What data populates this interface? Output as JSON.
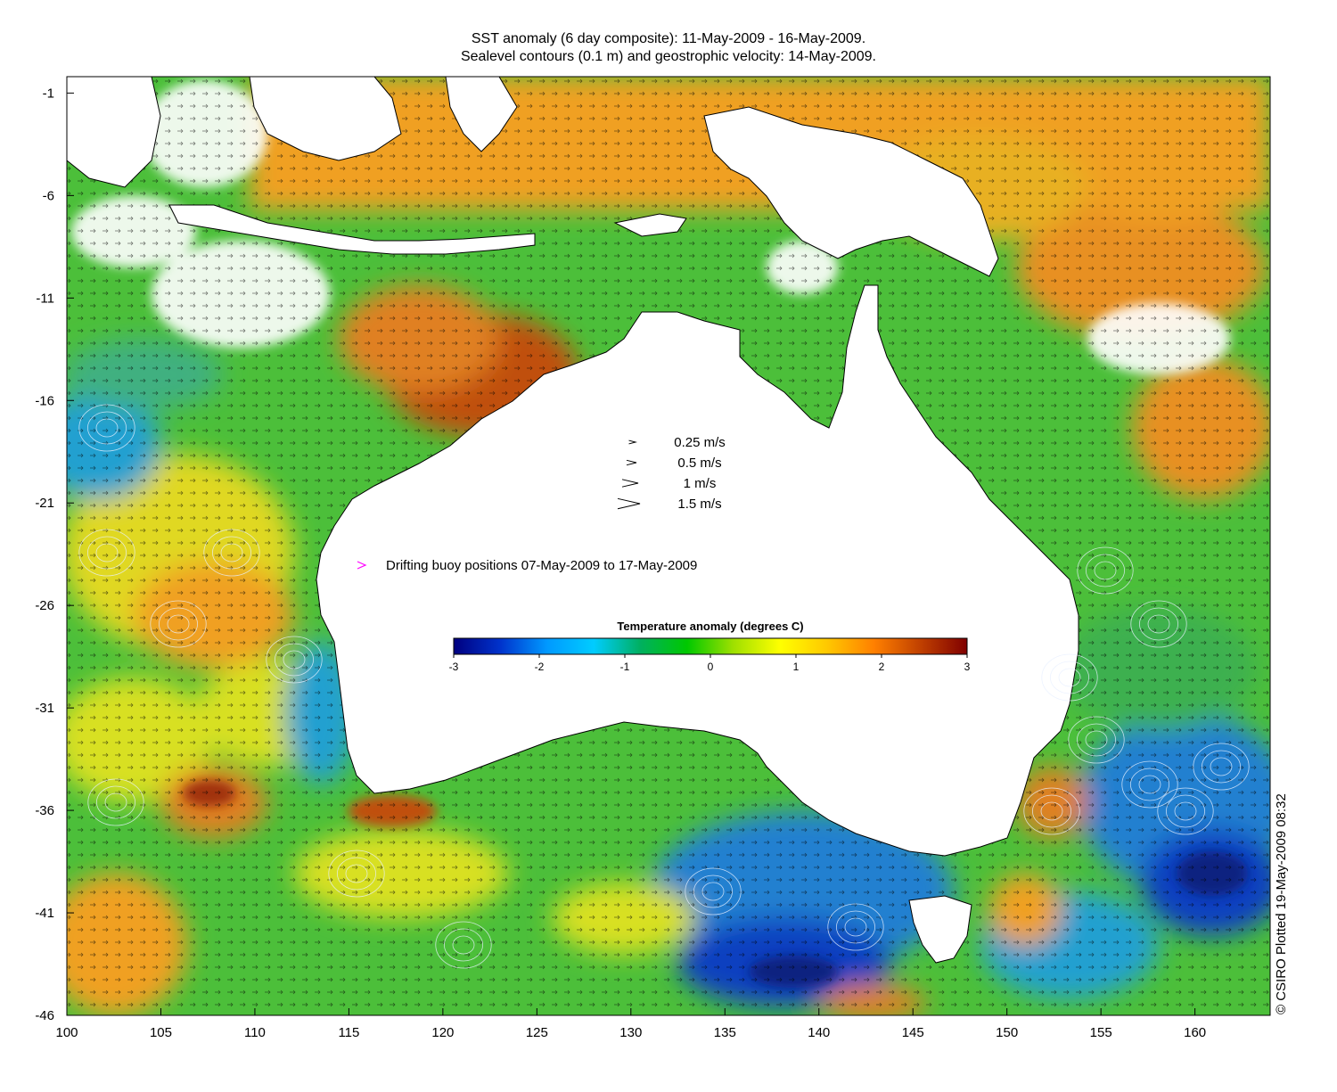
{
  "title_line1": "SST anomaly (6 day composite): 11-May-2009 - 16-May-2009.",
  "title_line2": "Sealevel contours (0.1 m) and geostrophic velocity: 14-May-2009.",
  "axes": {
    "x_ticks": [
      "100",
      "105",
      "110",
      "115",
      "120",
      "125",
      "130",
      "135",
      "140",
      "145",
      "150",
      "155",
      "160"
    ],
    "y_ticks": [
      "-1",
      "-6",
      "-11",
      "-16",
      "-21",
      "-26",
      "-31",
      "-36",
      "-41",
      "-46"
    ],
    "lon_range": [
      100,
      164
    ],
    "lat_range": [
      -46,
      -0.2
    ]
  },
  "velocity_legend": [
    {
      "label": "0.25 m/s",
      "speed": 0.25
    },
    {
      "label": "0.5 m/s",
      "speed": 0.5
    },
    {
      "label": "1 m/s",
      "speed": 1
    },
    {
      "label": "1.5 m/s",
      "speed": 1.5
    }
  ],
  "buoy_legend": {
    "label": "Drifting buoy positions 07-May-2009 to 17-May-2009",
    "marker_color": "#ff00ff"
  },
  "colorbar": {
    "title": "Temperature anomaly (degrees C)",
    "ticks": [
      "-3",
      "-2",
      "-1",
      "0",
      "1",
      "2",
      "3"
    ],
    "range": [
      -3,
      3
    ],
    "colors": [
      "#00007f",
      "#0033cc",
      "#0099ff",
      "#00ccff",
      "#00b060",
      "#00c800",
      "#a0e000",
      "#ffff00",
      "#ffc800",
      "#ff8000",
      "#c04000",
      "#800000"
    ]
  },
  "credit": "© CSIRO Plotted 19-May-2009 08:32",
  "palette": {
    "land": "#ffffff",
    "ocean_base": "#4cbf3a",
    "warm": "#f0a020",
    "hot": "#c05010",
    "cool": "#20a0d0",
    "cold": "#1040c0",
    "yellow": "#d8e020",
    "contour": "#e8f0ff",
    "arrow": "#000000"
  }
}
